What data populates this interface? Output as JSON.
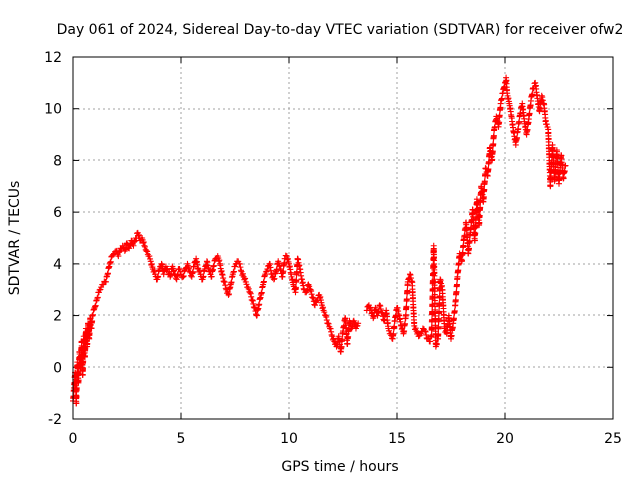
{
  "chart_data": {
    "type": "scatter",
    "title": "Day 061 of 2024, Sidereal Day-to-day VTEC variation (SDTVAR) for receiver ofw2",
    "xlabel": "GPS time / hours",
    "ylabel": "SDTVAR / TECUs",
    "xlim": [
      0,
      25
    ],
    "ylim": [
      -2,
      12
    ],
    "xticks": [
      0,
      5,
      10,
      15,
      20,
      25
    ],
    "yticks": [
      -2,
      0,
      2,
      4,
      6,
      8,
      10,
      12
    ],
    "x_tick_labels": [
      "0",
      "5",
      "10",
      "15",
      "20",
      "25"
    ],
    "y_tick_labels": [
      "-2",
      "0",
      "2",
      "4",
      "6",
      "8",
      "10",
      "12"
    ],
    "grid": true,
    "marker": "plus",
    "color": "#ff0000",
    "series": [
      {
        "name": "ofw2",
        "points": [
          [
            0.0,
            -1.3
          ],
          [
            0.05,
            -0.8
          ],
          [
            0.1,
            -0.2
          ],
          [
            0.15,
            -1.4
          ],
          [
            0.2,
            0.2
          ],
          [
            0.25,
            -0.6
          ],
          [
            0.3,
            0.6
          ],
          [
            0.35,
            0.0
          ],
          [
            0.4,
            1.0
          ],
          [
            0.45,
            -0.3
          ],
          [
            0.5,
            1.2
          ],
          [
            0.55,
            0.4
          ],
          [
            0.6,
            1.5
          ],
          [
            0.65,
            0.8
          ],
          [
            0.7,
            1.7
          ],
          [
            0.75,
            1.1
          ],
          [
            0.8,
            1.9
          ],
          [
            0.85,
            1.5
          ],
          [
            0.9,
            2.0
          ],
          [
            1.0,
            2.3
          ],
          [
            1.1,
            2.6
          ],
          [
            1.2,
            2.9
          ],
          [
            1.3,
            3.1
          ],
          [
            1.4,
            3.2
          ],
          [
            1.5,
            3.3
          ],
          [
            1.6,
            3.6
          ],
          [
            1.7,
            4.0
          ],
          [
            1.8,
            4.3
          ],
          [
            1.9,
            4.4
          ],
          [
            2.0,
            4.5
          ],
          [
            2.1,
            4.3
          ],
          [
            2.2,
            4.6
          ],
          [
            2.3,
            4.7
          ],
          [
            2.4,
            4.5
          ],
          [
            2.5,
            4.8
          ],
          [
            2.6,
            4.6
          ],
          [
            2.7,
            4.9
          ],
          [
            2.8,
            4.7
          ],
          [
            2.9,
            5.0
          ],
          [
            3.0,
            5.2
          ],
          [
            3.1,
            4.9
          ],
          [
            3.2,
            5.0
          ],
          [
            3.3,
            4.7
          ],
          [
            3.4,
            4.5
          ],
          [
            3.5,
            4.3
          ],
          [
            3.6,
            4.1
          ],
          [
            3.7,
            3.8
          ],
          [
            3.8,
            3.6
          ],
          [
            3.9,
            3.4
          ],
          [
            4.0,
            3.8
          ],
          [
            4.1,
            4.0
          ],
          [
            4.2,
            3.6
          ],
          [
            4.3,
            3.9
          ],
          [
            4.4,
            3.7
          ],
          [
            4.5,
            3.5
          ],
          [
            4.6,
            3.9
          ],
          [
            4.7,
            3.6
          ],
          [
            4.8,
            3.4
          ],
          [
            4.9,
            3.8
          ],
          [
            5.0,
            3.6
          ],
          [
            5.1,
            3.5
          ],
          [
            5.2,
            3.8
          ],
          [
            5.3,
            4.0
          ],
          [
            5.4,
            3.7
          ],
          [
            5.5,
            3.5
          ],
          [
            5.6,
            3.9
          ],
          [
            5.7,
            4.2
          ],
          [
            5.8,
            3.8
          ],
          [
            5.9,
            3.6
          ],
          [
            6.0,
            3.4
          ],
          [
            6.1,
            3.8
          ],
          [
            6.2,
            4.1
          ],
          [
            6.3,
            3.7
          ],
          [
            6.4,
            3.5
          ],
          [
            6.5,
            3.9
          ],
          [
            6.6,
            4.2
          ],
          [
            6.7,
            4.3
          ],
          [
            6.8,
            4.0
          ],
          [
            6.9,
            3.6
          ],
          [
            7.0,
            3.3
          ],
          [
            7.1,
            3.0
          ],
          [
            7.2,
            2.8
          ],
          [
            7.3,
            3.2
          ],
          [
            7.4,
            3.6
          ],
          [
            7.5,
            3.9
          ],
          [
            7.6,
            4.1
          ],
          [
            7.7,
            4.0
          ],
          [
            7.8,
            3.7
          ],
          [
            7.9,
            3.5
          ],
          [
            8.0,
            3.3
          ],
          [
            8.1,
            3.1
          ],
          [
            8.2,
            2.9
          ],
          [
            8.3,
            2.6
          ],
          [
            8.4,
            2.3
          ],
          [
            8.5,
            2.0
          ],
          [
            8.6,
            2.4
          ],
          [
            8.7,
            2.8
          ],
          [
            8.8,
            3.2
          ],
          [
            8.9,
            3.6
          ],
          [
            9.0,
            3.8
          ],
          [
            9.1,
            4.0
          ],
          [
            9.2,
            3.6
          ],
          [
            9.3,
            3.4
          ],
          [
            9.4,
            3.7
          ],
          [
            9.5,
            4.1
          ],
          [
            9.6,
            3.8
          ],
          [
            9.7,
            3.5
          ],
          [
            9.8,
            4.2
          ],
          [
            9.9,
            4.3
          ],
          [
            10.0,
            4.0
          ],
          [
            10.1,
            3.6
          ],
          [
            10.2,
            3.2
          ],
          [
            10.3,
            2.9
          ],
          [
            10.4,
            4.2
          ],
          [
            10.5,
            3.8
          ],
          [
            10.6,
            3.4
          ],
          [
            10.7,
            3.0
          ],
          [
            10.8,
            2.9
          ],
          [
            10.9,
            3.2
          ],
          [
            11.0,
            3.0
          ],
          [
            11.1,
            2.7
          ],
          [
            11.2,
            2.4
          ],
          [
            11.3,
            2.6
          ],
          [
            11.4,
            2.8
          ],
          [
            11.5,
            2.5
          ],
          [
            11.6,
            2.2
          ],
          [
            11.7,
            2.0
          ],
          [
            11.8,
            1.7
          ],
          [
            11.9,
            1.5
          ],
          [
            12.0,
            1.2
          ],
          [
            12.1,
            1.0
          ],
          [
            12.2,
            0.8
          ],
          [
            12.3,
            1.2
          ],
          [
            12.4,
            0.6
          ],
          [
            12.5,
            1.4
          ],
          [
            12.6,
            1.9
          ],
          [
            12.7,
            0.9
          ],
          [
            12.8,
            1.8
          ],
          [
            12.9,
            1.5
          ],
          [
            13.0,
            1.8
          ],
          [
            13.1,
            1.5
          ],
          [
            13.2,
            1.7
          ],
          [
            13.6,
            2.2
          ],
          [
            13.7,
            2.4
          ],
          [
            13.8,
            2.2
          ],
          [
            13.9,
            1.9
          ],
          [
            14.0,
            2.3
          ],
          [
            14.1,
            2.0
          ],
          [
            14.2,
            2.4
          ],
          [
            14.3,
            2.1
          ],
          [
            14.4,
            1.8
          ],
          [
            14.5,
            2.2
          ],
          [
            14.6,
            1.5
          ],
          [
            14.7,
            1.3
          ],
          [
            14.8,
            1.1
          ],
          [
            14.9,
            1.8
          ],
          [
            15.0,
            2.3
          ],
          [
            15.1,
            2.0
          ],
          [
            15.2,
            1.6
          ],
          [
            15.3,
            1.3
          ],
          [
            15.4,
            1.9
          ],
          [
            15.5,
            3.3
          ],
          [
            15.6,
            3.6
          ],
          [
            15.7,
            3.3
          ],
          [
            15.8,
            1.6
          ],
          [
            15.9,
            1.4
          ],
          [
            16.0,
            1.2
          ],
          [
            16.1,
            1.3
          ],
          [
            16.2,
            1.5
          ],
          [
            16.3,
            1.4
          ],
          [
            16.4,
            1.1
          ],
          [
            16.5,
            1.0
          ],
          [
            16.6,
            1.2
          ],
          [
            16.7,
            4.7
          ],
          [
            16.8,
            0.8
          ],
          [
            16.9,
            1.1
          ],
          [
            17.0,
            3.4
          ],
          [
            17.1,
            3.0
          ],
          [
            17.2,
            1.5
          ],
          [
            17.3,
            1.3
          ],
          [
            17.4,
            2.0
          ],
          [
            17.5,
            1.1
          ],
          [
            17.6,
            1.7
          ],
          [
            17.7,
            2.4
          ],
          [
            17.8,
            3.5
          ],
          [
            17.9,
            4.4
          ],
          [
            18.0,
            4.1
          ],
          [
            18.1,
            5.0
          ],
          [
            18.2,
            5.6
          ],
          [
            18.3,
            4.4
          ],
          [
            18.4,
            5.2
          ],
          [
            18.5,
            6.1
          ],
          [
            18.6,
            4.9
          ],
          [
            18.7,
            6.5
          ],
          [
            18.8,
            5.5
          ],
          [
            18.9,
            7.0
          ],
          [
            19.0,
            6.4
          ],
          [
            19.1,
            7.7
          ],
          [
            19.2,
            7.4
          ],
          [
            19.3,
            8.5
          ],
          [
            19.4,
            8.0
          ],
          [
            19.5,
            9.2
          ],
          [
            19.6,
            9.7
          ],
          [
            19.7,
            9.3
          ],
          [
            19.8,
            10.2
          ],
          [
            19.9,
            10.6
          ],
          [
            20.0,
            11.0
          ],
          [
            20.05,
            11.2
          ],
          [
            20.1,
            10.6
          ],
          [
            20.2,
            10.2
          ],
          [
            20.3,
            9.7
          ],
          [
            20.4,
            9.1
          ],
          [
            20.5,
            8.6
          ],
          [
            20.6,
            9.2
          ],
          [
            20.7,
            9.8
          ],
          [
            20.8,
            10.2
          ],
          [
            20.9,
            9.5
          ],
          [
            21.0,
            9.0
          ],
          [
            21.1,
            9.6
          ],
          [
            21.2,
            10.3
          ],
          [
            21.3,
            10.8
          ],
          [
            21.4,
            11.0
          ],
          [
            21.5,
            10.4
          ],
          [
            21.6,
            9.9
          ],
          [
            21.7,
            10.5
          ],
          [
            21.8,
            10.2
          ],
          [
            21.9,
            9.4
          ],
          [
            22.0,
            9.2
          ],
          [
            22.1,
            7.0
          ],
          [
            22.2,
            8.6
          ],
          [
            22.3,
            7.2
          ],
          [
            22.4,
            8.4
          ],
          [
            22.5,
            7.1
          ],
          [
            22.6,
            8.2
          ],
          [
            22.7,
            7.3
          ],
          [
            22.8,
            7.8
          ]
        ]
      }
    ]
  }
}
